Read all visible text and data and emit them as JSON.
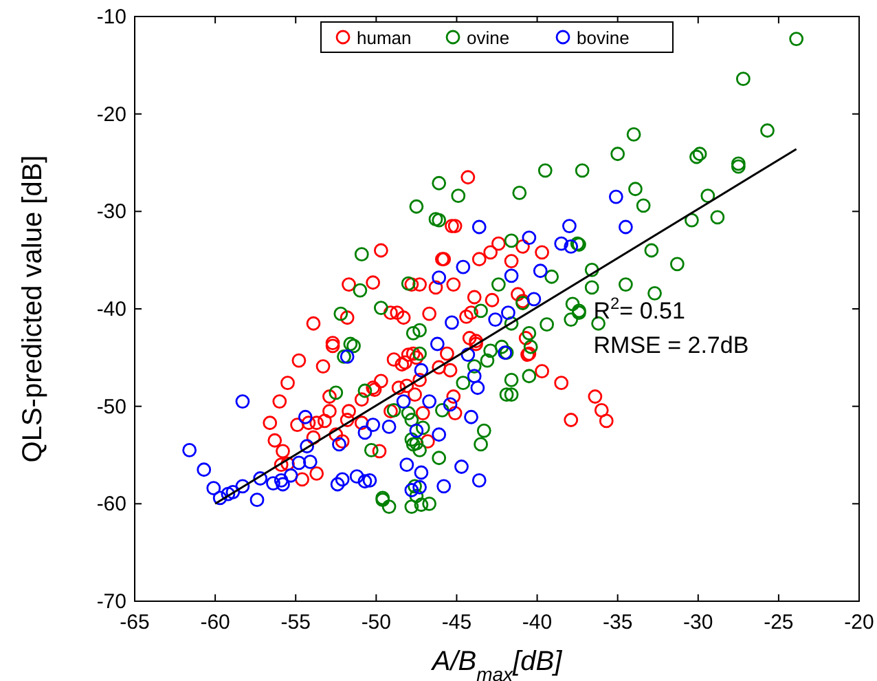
{
  "chart_data": {
    "type": "scatter",
    "xlabel": "A/B$_{max}$[dB]",
    "ylabel": "QLS-predicted value [dB]",
    "xlim": [
      -65,
      -20
    ],
    "xticks": [
      -65,
      -60,
      -55,
      -50,
      -45,
      -40,
      -35,
      -30,
      -25,
      -20
    ],
    "ylim": [
      -70,
      -10
    ],
    "yticks": [
      -70,
      -60,
      -50,
      -40,
      -30,
      -20,
      -10
    ],
    "legend": "top",
    "marker": "circle",
    "grid": false,
    "annotations": [
      "R$^{2}$= 0.51",
      "RMSE = 2.7dB"
    ],
    "series": [
      {
        "name": "human",
        "color": "#ff0000",
        "x": [
          -54.8,
          -53.3,
          -52.7,
          -55.5,
          -56.0,
          -56.6,
          -56.3,
          -55.8,
          -55.9,
          -55.5,
          -54.6,
          -53.7,
          -54.9,
          -54.2,
          -53.7,
          -53.2,
          -52.9,
          -53.9,
          -52.5,
          -52.1,
          -52.9,
          -51.7,
          -51.8,
          -50.9,
          -50.9,
          -49.8,
          -50.2,
          -49.7,
          -49.7,
          -45.9,
          -45.3,
          -51.7,
          -50.2,
          -51.8,
          -53.9,
          -52.7,
          -49.1,
          -48.7,
          -48.3,
          -47.8,
          -47.3,
          -46.3,
          -46.7,
          -48.9,
          -48.0,
          -47.7,
          -48.4,
          -48.2,
          -47.5,
          -45.6,
          -46.1,
          -45.4,
          -50.1,
          -48.6,
          -48.1,
          -47.3,
          -47.6,
          -45.2,
          -45.1,
          -47.1,
          -49.1,
          -46.8,
          -40.6,
          -39.7,
          -43.8,
          -44.3,
          -45.1,
          -42.4,
          -42.9,
          -43.6,
          -40.9,
          -39.7,
          -41.6,
          -45.8,
          -45.2,
          -43.9,
          -42.8,
          -41.2,
          -40.9,
          -44.1,
          -44.4,
          -44.2,
          -43.8,
          -40.7,
          -40.5,
          -38.5,
          -36.4,
          -36.0,
          -35.7,
          -37.9
        ],
        "values": [
          -45.3,
          -45.9,
          -43.8,
          -47.6,
          -49.5,
          -51.7,
          -53.5,
          -54.6,
          -56.0,
          -55.9,
          -57.5,
          -56.9,
          -51.9,
          -51.7,
          -51.7,
          -51.5,
          -50.5,
          -53.2,
          -52.9,
          -53.6,
          -49.0,
          -50.5,
          -51.4,
          -49.3,
          -51.7,
          -54.6,
          -48.1,
          -47.4,
          -34.0,
          -34.9,
          -31.5,
          -37.5,
          -37.3,
          -40.9,
          -41.5,
          -43.5,
          -40.4,
          -40.4,
          -40.9,
          -37.5,
          -37.5,
          -37.8,
          -40.5,
          -45.2,
          -44.7,
          -44.6,
          -45.7,
          -45.5,
          -45.0,
          -44.6,
          -46.0,
          -46.3,
          -48.3,
          -48.1,
          -47.9,
          -47.3,
          -48.8,
          -49.0,
          -50.7,
          -50.7,
          -50.5,
          -53.6,
          -44.7,
          -46.4,
          -43.6,
          -26.5,
          -31.5,
          -33.3,
          -34.2,
          -34.9,
          -33.6,
          -34.2,
          -35.1,
          -34.9,
          -37.5,
          -38.8,
          -39.1,
          -38.5,
          -39.2,
          -40.4,
          -40.8,
          -43.0,
          -43.3,
          -43.0,
          -44.6,
          -47.6,
          -49.0,
          -50.4,
          -51.5,
          -51.4
        ]
      },
      {
        "name": "ovine",
        "color": "#008000",
        "x": [
          -23.9,
          -27.2,
          -25.7,
          -34.0,
          -35.0,
          -30.1,
          -29.9,
          -27.5,
          -27.5,
          -37.2,
          -33.9,
          -33.4,
          -29.4,
          -30.4,
          -28.8,
          -32.9,
          -31.3,
          -36.6,
          -36.6,
          -34.5,
          -32.7,
          -37.4,
          -36.2,
          -37.5,
          -39.5,
          -44.9,
          -41.1,
          -46.1,
          -46.1,
          -41.6,
          -37.4,
          -39.1,
          -42.4,
          -37.8,
          -37.4,
          -37.9,
          -39.4,
          -43.5,
          -40.9,
          -41.6,
          -40.5,
          -40.4,
          -42.2,
          -42.9,
          -41.9,
          -47.5,
          -46.3,
          -50.9,
          -51.0,
          -48.0,
          -49.7,
          -52.2,
          -51.4,
          -52.0,
          -47.3,
          -47.7,
          -47.3,
          -43.1,
          -43.9,
          -44.6,
          -41.6,
          -40.5,
          -41.9,
          -41.6,
          -48.9,
          -48.0,
          -47.8,
          -45.9,
          -47.1,
          -47.8,
          -47.5,
          -47.3,
          -47.7,
          -43.3,
          -43.5,
          -46.1,
          -49.6,
          -49.2,
          -47.6,
          -47.8,
          -47.5,
          -47.2,
          -46.7,
          -52.5,
          -50.7,
          -50.3,
          -49.6,
          -51.6
        ],
        "values": [
          -12.3,
          -16.4,
          -21.7,
          -22.1,
          -24.1,
          -24.4,
          -24.1,
          -25.1,
          -25.4,
          -25.8,
          -27.7,
          -29.4,
          -28.4,
          -30.9,
          -30.6,
          -34.0,
          -35.4,
          -36.0,
          -37.8,
          -37.5,
          -38.4,
          -40.2,
          -41.5,
          -33.3,
          -25.8,
          -28.4,
          -28.1,
          -27.1,
          -30.9,
          -33.0,
          -33.4,
          -36.7,
          -37.5,
          -39.5,
          -40.4,
          -41.1,
          -41.6,
          -40.2,
          -39.4,
          -41.5,
          -42.5,
          -43.9,
          -43.9,
          -44.3,
          -44.5,
          -29.5,
          -30.8,
          -34.4,
          -38.1,
          -37.4,
          -39.9,
          -40.5,
          -43.8,
          -44.9,
          -42.2,
          -42.5,
          -44.6,
          -45.3,
          -45.9,
          -47.6,
          -47.3,
          -46.9,
          -48.8,
          -48.8,
          -50.4,
          -50.7,
          -51.4,
          -50.4,
          -52.2,
          -53.4,
          -53.8,
          -54.5,
          -53.9,
          -52.5,
          -53.9,
          -55.3,
          -59.4,
          -60.3,
          -58.2,
          -60.3,
          -59.2,
          -60.1,
          -60.0,
          -48.6,
          -48.4,
          -54.5,
          -59.6,
          -43.6
        ]
      },
      {
        "name": "bovine",
        "color": "#0000ff",
        "x": [
          -61.6,
          -60.7,
          -60.1,
          -59.7,
          -59.2,
          -58.9,
          -58.3,
          -58.3,
          -57.4,
          -57.2,
          -56.4,
          -55.8,
          -55.9,
          -55.3,
          -54.8,
          -54.1,
          -54.4,
          -54.3,
          -52.3,
          -52.4,
          -52.1,
          -51.2,
          -50.7,
          -50.4,
          -50.7,
          -50.2,
          -51.8,
          -49.2,
          -48.3,
          -47.5,
          -47.2,
          -46.7,
          -46.2,
          -46.1,
          -46.1,
          -48.1,
          -47.2,
          -47.8,
          -47.3,
          -45.8,
          -45.4,
          -45.3,
          -44.7,
          -44.6,
          -44.3,
          -44.1,
          -43.9,
          -43.7,
          -43.6,
          -43.6,
          -42.6,
          -42.0,
          -41.8,
          -41.6,
          -40.5,
          -40.2,
          -39.8,
          -38.5,
          -38.0,
          -37.9,
          -35.1,
          -34.5
        ],
        "values": [
          -54.5,
          -56.5,
          -58.4,
          -59.4,
          -59.0,
          -58.8,
          -58.2,
          -49.5,
          -59.6,
          -57.4,
          -57.9,
          -58.0,
          -57.6,
          -57.1,
          -55.8,
          -55.7,
          -51.1,
          -54.1,
          -53.9,
          -58.0,
          -57.5,
          -57.2,
          -57.7,
          -57.6,
          -52.7,
          -51.9,
          -44.9,
          -52.1,
          -49.5,
          -52.5,
          -46.3,
          -49.5,
          -43.6,
          -52.9,
          -36.8,
          -56.0,
          -56.8,
          -58.6,
          -58.3,
          -58.2,
          -49.8,
          -41.4,
          -56.2,
          -35.7,
          -44.7,
          -51.1,
          -46.9,
          -48.1,
          -57.6,
          -31.6,
          -41.1,
          -44.5,
          -40.4,
          -36.6,
          -32.7,
          -39.0,
          -36.1,
          -33.3,
          -31.5,
          -33.6,
          -28.5,
          -31.6
        ]
      },
      {
        "type": "line",
        "marker": "none",
        "color": "#000000",
        "x": [
          -60,
          -23.9
        ],
        "values": [
          -60,
          -23.6
        ]
      }
    ]
  }
}
